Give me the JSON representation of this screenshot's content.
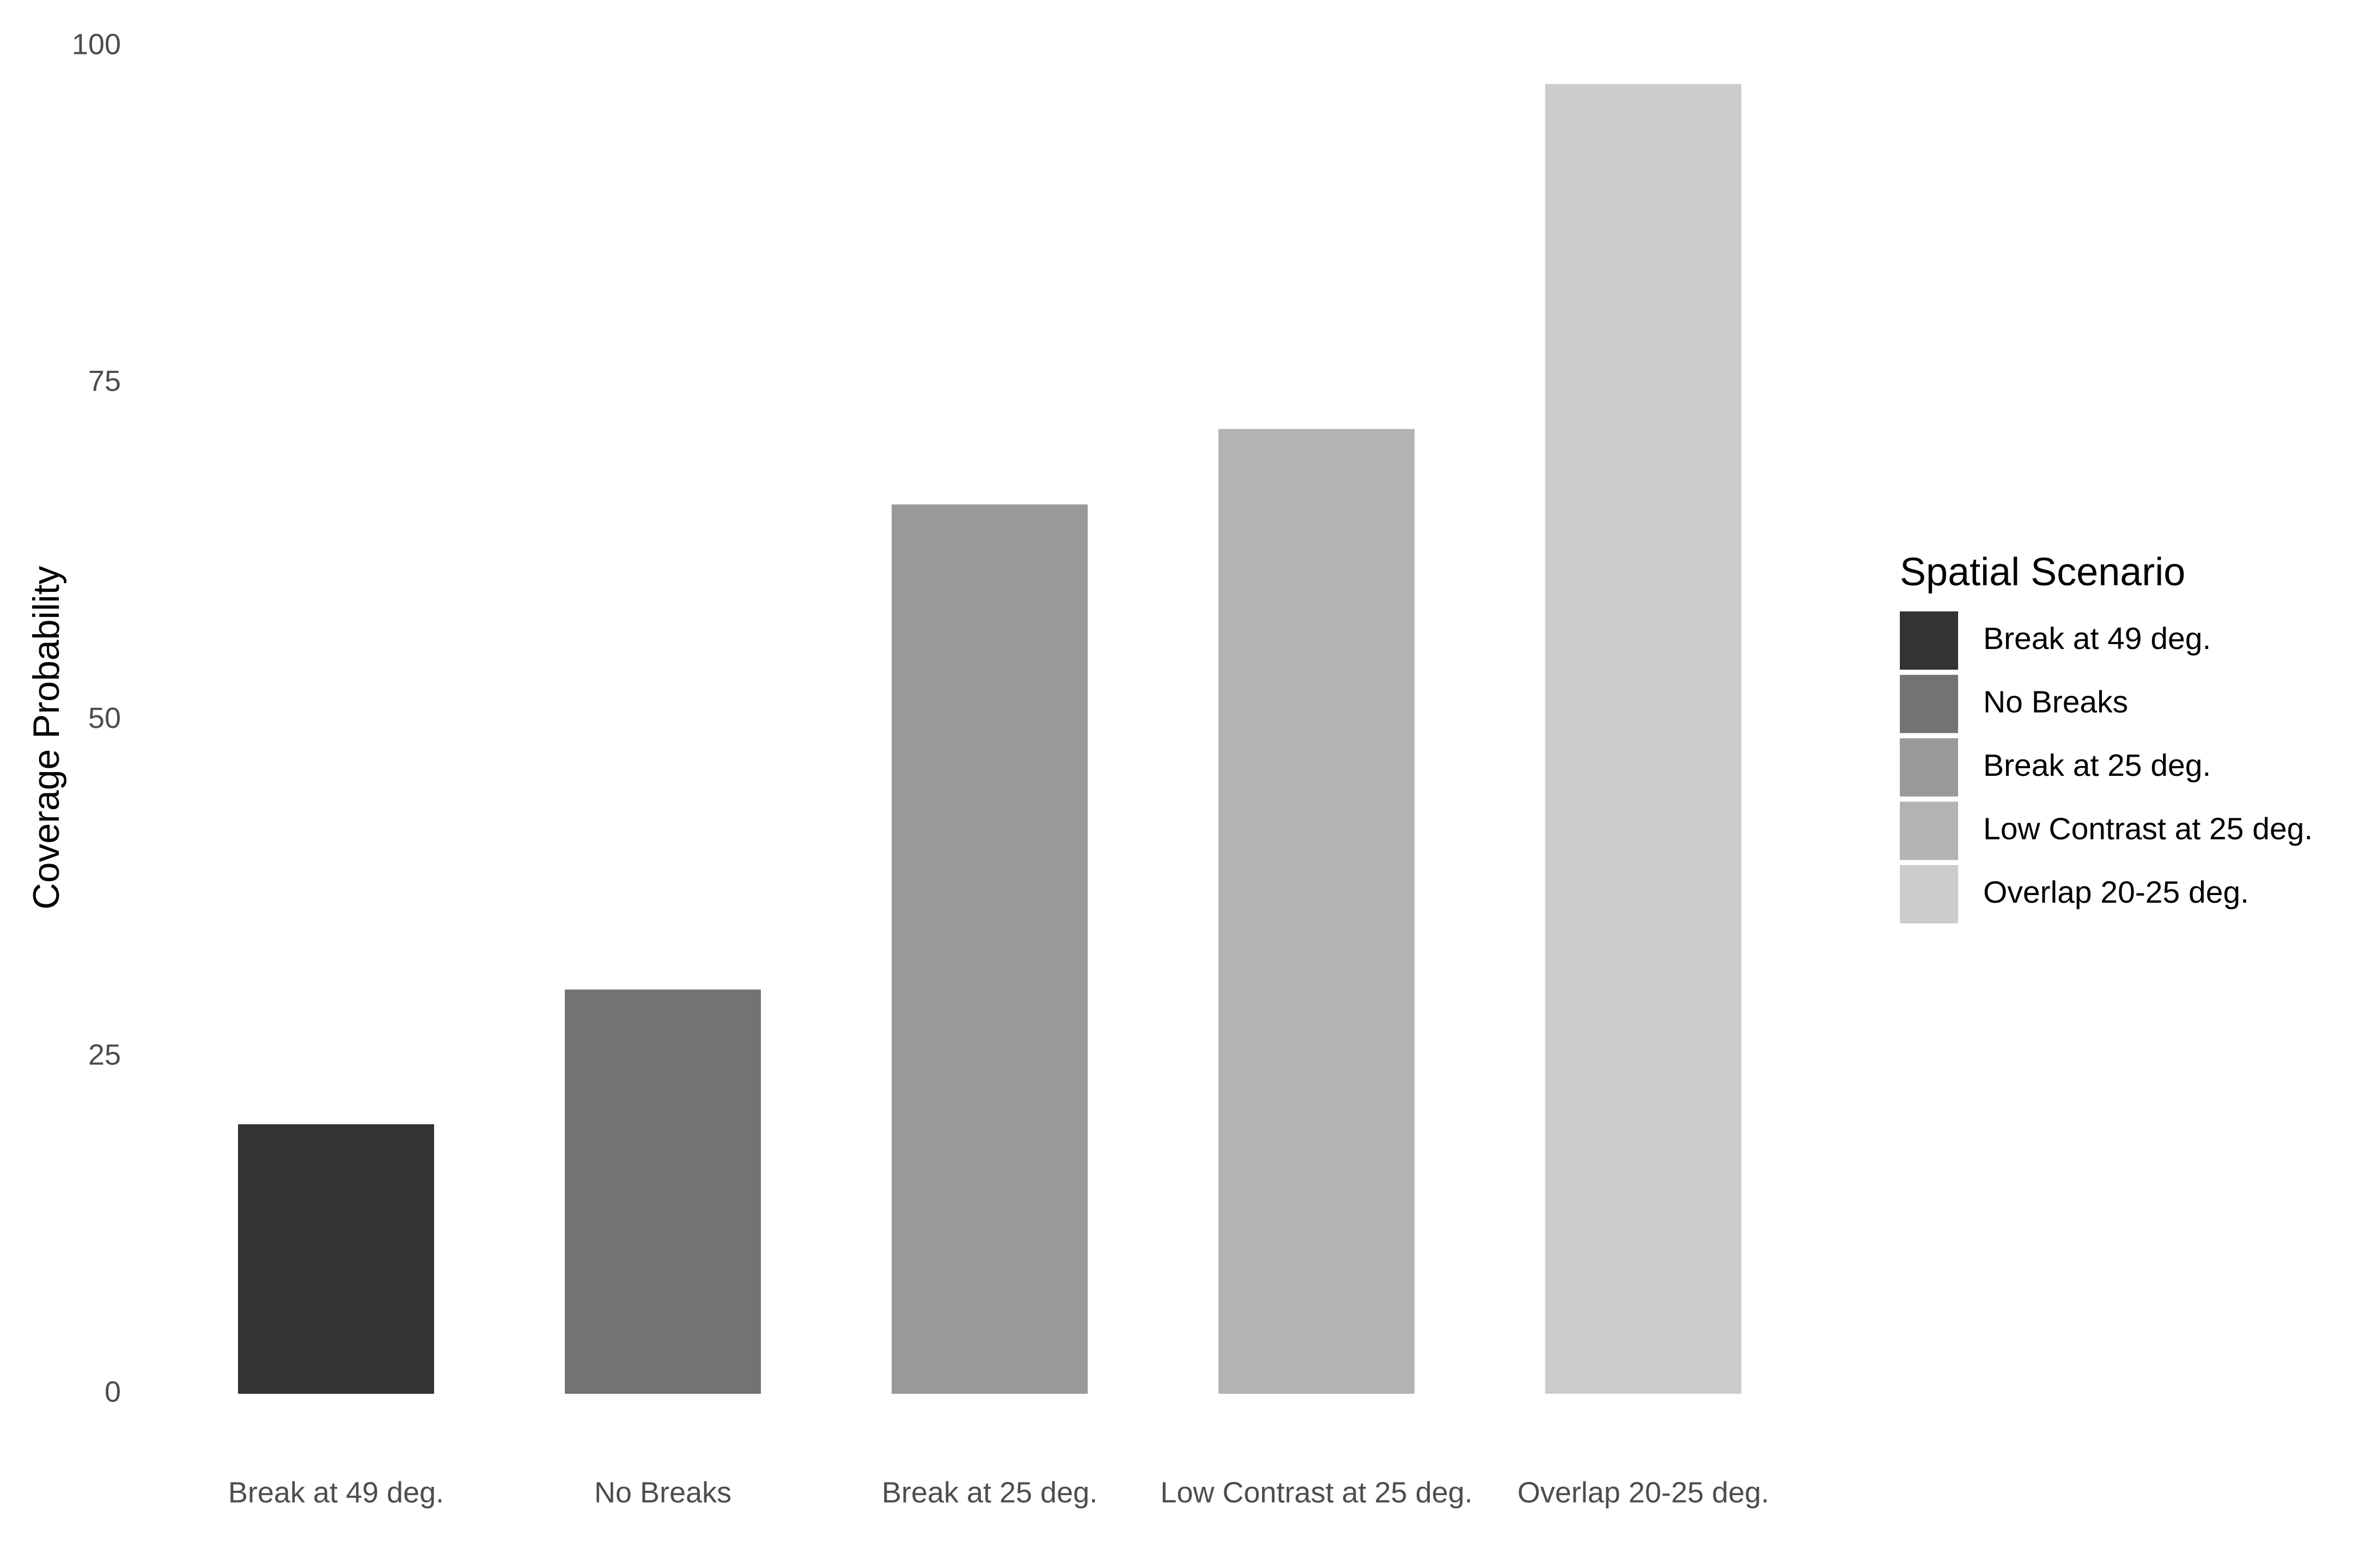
{
  "chart_data": {
    "type": "bar",
    "categories": [
      "Break at 49 deg.",
      "No Breaks",
      "Break at 25 deg.",
      "Low Contrast at 25 deg.",
      "Overlap 20-25 deg."
    ],
    "values": [
      20,
      30,
      66,
      71.6,
      97.2
    ],
    "colors": [
      "#333333",
      "#737373",
      "#999999",
      "#b3b3b3",
      "#cccccc"
    ],
    "title": "",
    "xlabel": "",
    "ylabel": "Coverage Probability",
    "ylim": [
      0,
      100
    ],
    "yticks": [
      0,
      25,
      50,
      75,
      100
    ],
    "grid": false,
    "legend": {
      "title": "Spatial Scenario",
      "placement": "right",
      "entries": [
        "Break at 49 deg.",
        "No Breaks",
        "Break at 25 deg.",
        "Low Contrast at 25 deg.",
        "Overlap 20-25 deg."
      ]
    }
  }
}
